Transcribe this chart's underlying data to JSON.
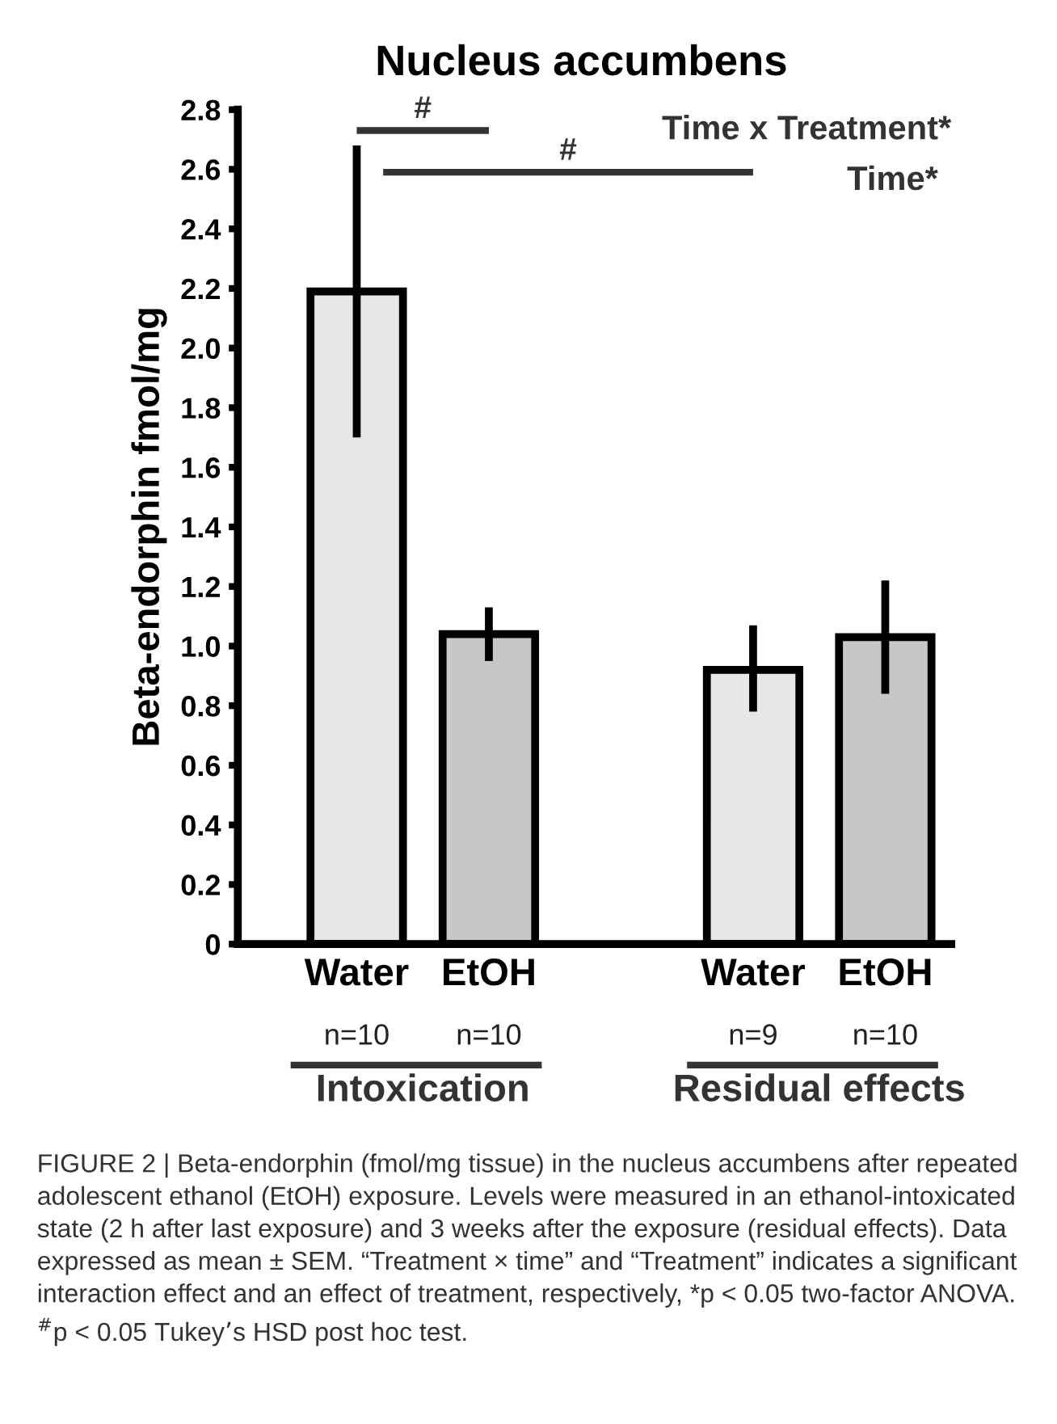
{
  "chart_data": {
    "type": "bar",
    "title": "Nucleus accumbens",
    "ylabel": "Beta-endorphin fmol/mg",
    "categories": [
      "Water",
      "EtOH",
      null,
      "Water",
      "EtOH"
    ],
    "values": [
      2.19,
      1.04,
      null,
      0.92,
      1.03
    ],
    "colors": [
      "#e6e7e6",
      "#c6c7c8",
      "#ffffff",
      "#e6e7e6",
      "#c6c7c8"
    ],
    "errors": [
      [
        1.7,
        2.68
      ],
      [
        0.95,
        1.13
      ],
      null,
      [
        0.78,
        1.07
      ],
      [
        0.84,
        1.22
      ]
    ],
    "ylim": [
      0,
      2.8
    ],
    "yticks": [
      {
        "value": 0,
        "label": "0"
      },
      {
        "value": 0.2,
        "label": "0.2"
      },
      {
        "value": 0.4,
        "label": "0.4"
      },
      {
        "value": 0.6,
        "label": "0.6"
      },
      {
        "value": 0.8,
        "label": "0.8"
      },
      {
        "value": 1.0,
        "label": "1.0"
      },
      {
        "value": 1.2,
        "label": "1.2"
      },
      {
        "value": 1.4,
        "label": "1.4"
      },
      {
        "value": 1.6,
        "label": "1.6"
      },
      {
        "value": 1.8,
        "label": "1.8"
      },
      {
        "value": 2.0,
        "label": "2.0"
      },
      {
        "value": 2.2,
        "label": "2.2"
      },
      {
        "value": 2.4,
        "label": "2.4"
      },
      {
        "value": 2.6,
        "label": "2.6"
      },
      {
        "value": 2.8,
        "label": "2.8"
      }
    ],
    "grid": false,
    "legend": false,
    "annotations": [
      "Time x Treatment*",
      "Time*",
      "#",
      "#",
      "n=10",
      "n=10",
      "n=9",
      "n=10",
      "Intoxication",
      "Residual effects",
      "FIGURE 2 | Beta-endorphin (fmol/mg tissue) in the nucleus accumbens after repeated adolescent ethanol (EtOH) exposure. Levels were measured in an ethanol-intoxicated state (2 h after last exposure) and 3 weeks after the exposure (residual effects). Data expressed as mean ± SEM. “Treatment × time” and “Treatment” indicates a significant interaction effect and an effect of treatment, respectively, *p < 0.05 two-factor ANOVA. $^{#}$p < 0.05 Tukey’s HSD post hoc test."
    ]
  }
}
